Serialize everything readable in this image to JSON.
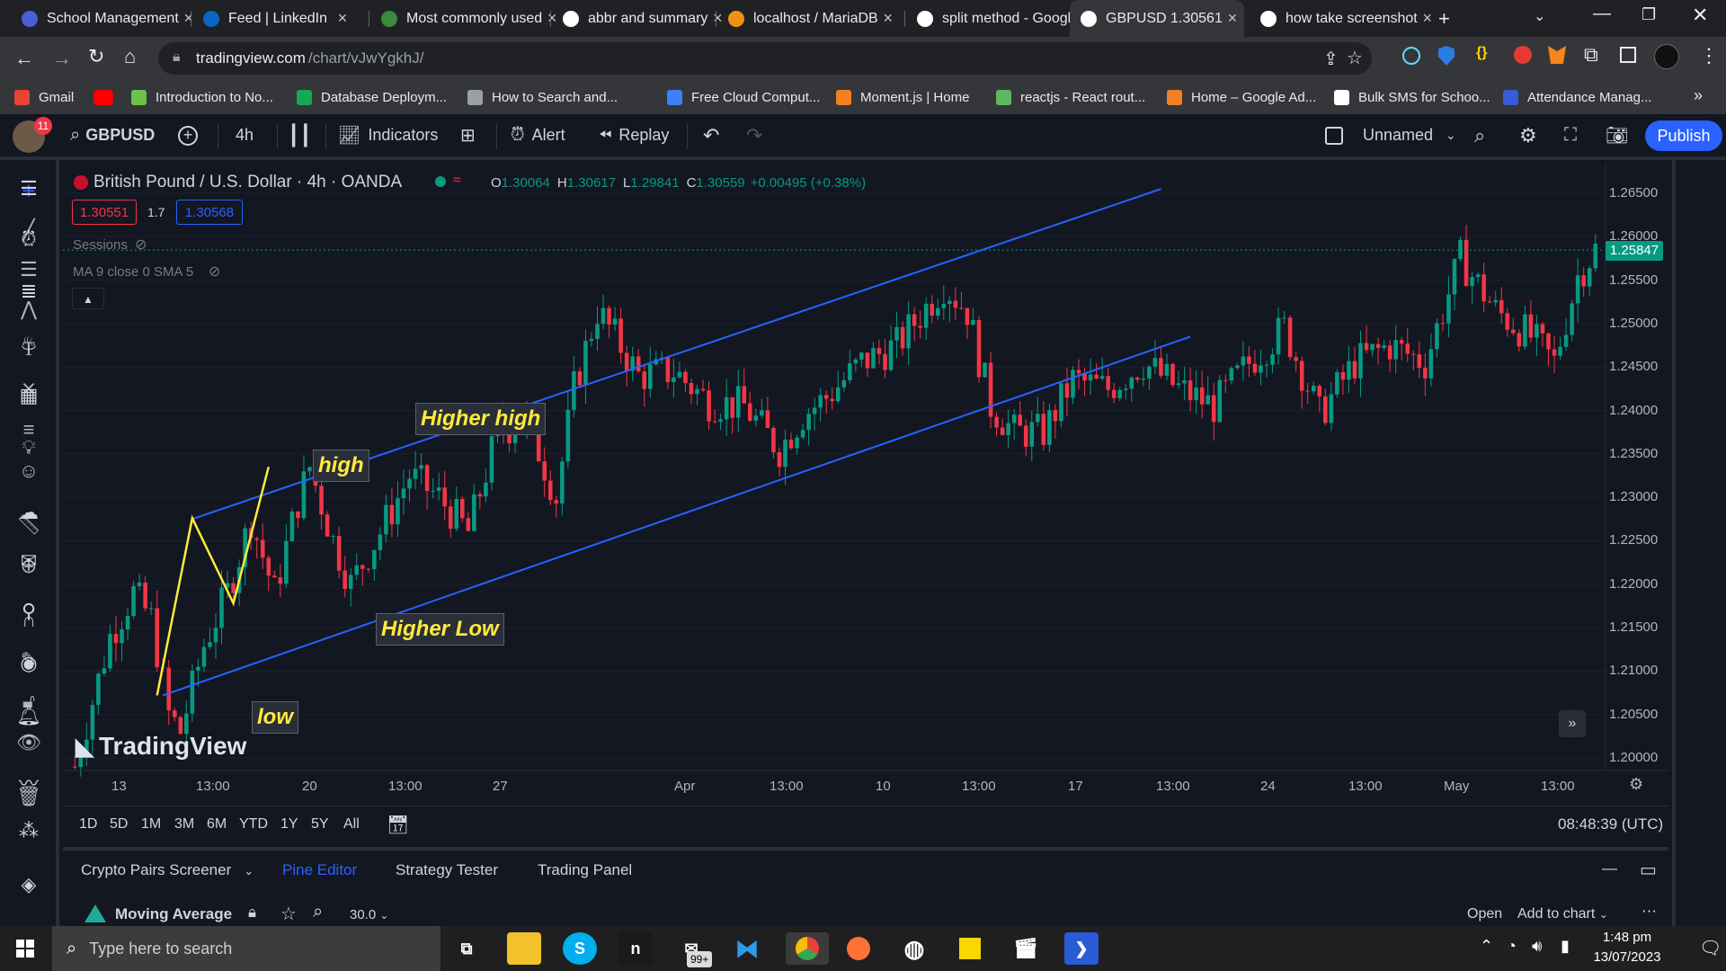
{
  "browser": {
    "tabs": [
      {
        "title": "School Management",
        "icon": "school-icon",
        "color": "#4c5fd5"
      },
      {
        "title": "Feed | LinkedIn",
        "icon": "linkedin-icon",
        "color": "#0a66c2"
      },
      {
        "title": "Most commonly used",
        "icon": "code-icon",
        "color": "#3c8a3c"
      },
      {
        "title": "abbr and summary",
        "icon": "google-icon",
        "color": "#ffffff"
      },
      {
        "title": "localhost / MariaDB",
        "icon": "phpmyadmin-icon",
        "color": "#f29111"
      },
      {
        "title": "split method - Google",
        "icon": "google-icon",
        "color": "#ffffff"
      },
      {
        "title": "GBPUSD 1.30561",
        "icon": "tradingview-icon",
        "color": "#ffffff"
      },
      {
        "title": "how take screenshot",
        "icon": "google-icon",
        "color": "#ffffff"
      }
    ],
    "url_host": "tradingview.com",
    "url_path": "/chart/vJwYgkhJ/",
    "bookmarks": [
      {
        "label": "Gmail",
        "color": "#ea4335"
      },
      {
        "label": "",
        "color": "#ff0000"
      },
      {
        "label": "Introduction to No...",
        "color": "#6cc24a"
      },
      {
        "label": "Database Deploym...",
        "color": "#13aa52"
      },
      {
        "label": "How to Search and...",
        "color": "#9aa0a6"
      },
      {
        "label": "Free Cloud Comput...",
        "color": "#3b82f6"
      },
      {
        "label": "Moment.js | Home",
        "color": "#f38020"
      },
      {
        "label": "reactjs - React rout...",
        "color": "#5fb85f"
      },
      {
        "label": "Home – Google Ad...",
        "color": "#f48024"
      },
      {
        "label": "Bulk SMS for Schoo...",
        "color": "#ffffff"
      },
      {
        "label": "Attendance Manag...",
        "color": "#3a5bd9"
      },
      {
        "label": "",
        "color": "#e84393"
      }
    ]
  },
  "toolbar": {
    "notification_count": "11",
    "symbol": "GBPUSD",
    "interval": "4h",
    "indicators": "Indicators",
    "alert": "Alert",
    "replay": "Replay",
    "layout_name": "Unnamed",
    "publish": "Publish"
  },
  "legend": {
    "title": "British Pound / U.S. Dollar · 4h · OANDA",
    "o_label": "O",
    "o": "1.30064",
    "h_label": "H",
    "h": "1.30617",
    "l_label": "L",
    "l": "1.29841",
    "c_label": "C",
    "c": "1.30559",
    "change": "+0.00495 (+0.38%)",
    "sell_price": "1.30551",
    "spread": "1.7",
    "buy_price": "1.30568",
    "sessions": "Sessions",
    "ma": "MA 9 close 0 SMA 5"
  },
  "chart_data": {
    "type": "candlestick",
    "symbol": "GBPUSD",
    "interval": "4h",
    "price_axis": [
      "1.26500",
      "1.26000",
      "1.25500",
      "1.25000",
      "1.24500",
      "1.24000",
      "1.23500",
      "1.23000",
      "1.22500",
      "1.22000",
      "1.21500",
      "1.21000",
      "1.20500",
      "1.20000"
    ],
    "last_price": "1.25847",
    "ylim": [
      1.198,
      1.267
    ],
    "time_axis": [
      "13",
      "13:00",
      "20",
      "13:00",
      "27",
      "Apr",
      "13:00",
      "10",
      "13:00",
      "17",
      "13:00",
      "24",
      "13:00",
      "May",
      "13:00"
    ],
    "annotations": [
      "low",
      "high",
      "Higher high",
      "Higher Low"
    ],
    "channel": {
      "upper": [
        {
          "bar": 20,
          "price": 1.2275
        },
        {
          "bar": 185,
          "price": 1.2655
        }
      ],
      "lower": [
        {
          "bar": 15,
          "price": 1.2072
        },
        {
          "bar": 190,
          "price": 1.2485
        }
      ]
    },
    "zigzag": [
      {
        "bar": 14,
        "price": 1.2072
      },
      {
        "bar": 20,
        "price": 1.2276
      },
      {
        "bar": 27,
        "price": 1.2178
      },
      {
        "bar": 33,
        "price": 1.2335
      }
    ],
    "candles": []
  },
  "watermark": "TradingView",
  "clock_utc": "08:48:39 (UTC)",
  "ranges": [
    "1D",
    "5D",
    "1M",
    "3M",
    "6M",
    "YTD",
    "1Y",
    "5Y",
    "All"
  ],
  "bottom_tabs": [
    "Crypto Pairs Screener",
    "Pine Editor",
    "Strategy Tester",
    "Trading Panel"
  ],
  "pine": {
    "script_name": "Moving Average",
    "version": "30.0",
    "open": "Open",
    "add_to_chart": "Add to chart"
  },
  "taskbar": {
    "search_placeholder": "Type here to search",
    "mail_badge": "99+",
    "time": "1:48 pm",
    "date": "13/07/2023"
  }
}
